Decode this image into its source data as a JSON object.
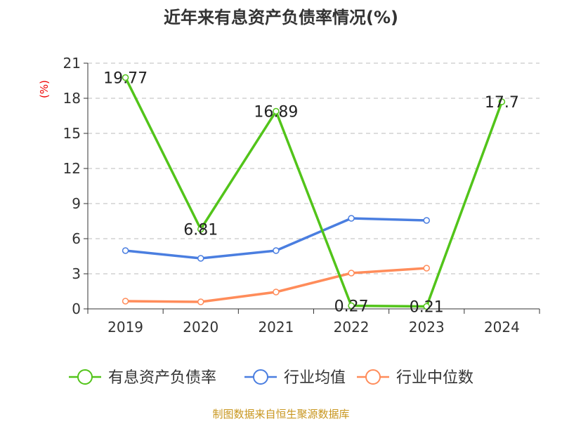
{
  "chart_data": {
    "type": "line",
    "title": "近年来有息资产负债率情况(%)",
    "ylabel": "(%)",
    "xlabel": "",
    "categories": [
      "2019",
      "2020",
      "2021",
      "2022",
      "2023",
      "2024"
    ],
    "ylim": [
      0,
      21
    ],
    "yticks": [
      0,
      3,
      6,
      9,
      12,
      15,
      18,
      21
    ],
    "grid": true,
    "legend_position": "bottom",
    "series": [
      {
        "name": "有息资产负债率",
        "color": "#52c41a",
        "values": [
          19.77,
          6.81,
          16.89,
          0.27,
          0.21,
          17.7
        ],
        "labels": [
          "19.77",
          "6.81",
          "16.89",
          "0.27",
          "0.21",
          "17.7"
        ]
      },
      {
        "name": "行业均值",
        "color": "#4a7ee0",
        "values": [
          4.98,
          4.32,
          4.98,
          7.74,
          7.56,
          null
        ]
      },
      {
        "name": "行业中位数",
        "color": "#ff8c5a",
        "values": [
          0.66,
          0.6,
          1.44,
          3.06,
          3.48,
          null
        ]
      }
    ],
    "source": "制图数据来自恒生聚源数据库"
  }
}
